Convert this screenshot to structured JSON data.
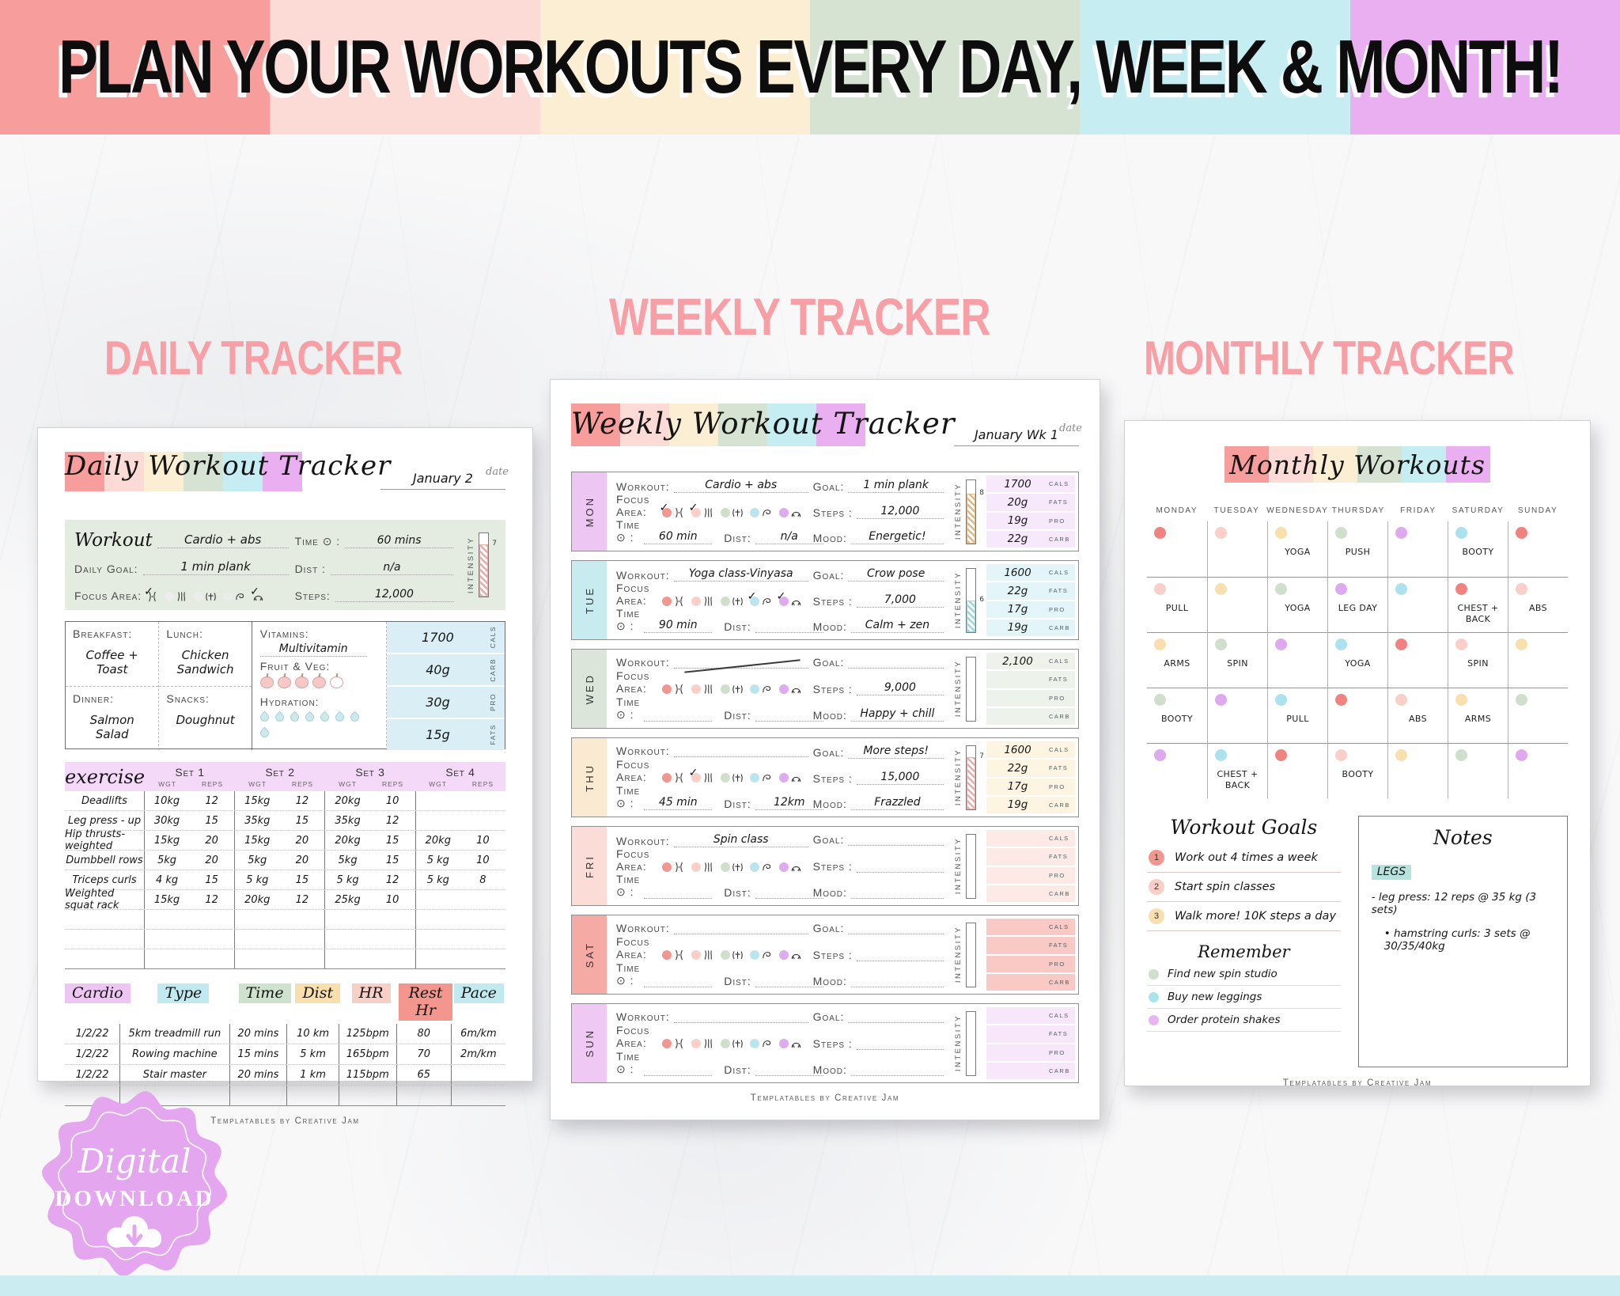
{
  "banner": {
    "headline": "PLAN YOUR WORKOUTS EVERY DAY, WEEK & MONTH!",
    "stripe_colors": [
      "#f79d9b",
      "#fcdad6",
      "#fceed3",
      "#d6e3d3",
      "#c6edf2",
      "#e9aff0"
    ]
  },
  "section_titles": {
    "daily": "DAILY TRACKER",
    "weekly": "WEEKLY TRACKER",
    "monthly": "MONTHLY TRACKER",
    "color": "#f79fa4"
  },
  "badge": {
    "line1": "Digital",
    "line2": "DOWNLOAD",
    "color": "#e3a6ef"
  },
  "footer": "Templatables by Creative Jam",
  "focus_icons": [
    "waist",
    "legs",
    "arms-up",
    "bicep",
    "shoulders"
  ],
  "daily": {
    "title": "Daily Workout Tracker",
    "date_value": "January 2",
    "date_label": "date",
    "panel": {
      "workout_label": "Workout",
      "workout": "Cardio + abs",
      "goal_label": "Daily Goal:",
      "goal": "1 min plank",
      "focus_label": "Focus Area:",
      "focus_checks": [
        true,
        false,
        false,
        false,
        true
      ],
      "unchecked_dot_color": "#ececec",
      "time_label": "Time ⊙ :",
      "time": "60 mins",
      "dist_label": "Dist :",
      "dist": "n/a",
      "steps_label": "Steps:",
      "steps": "12,000",
      "intensity": {
        "label": "INTENSITY",
        "value": "7",
        "fill": 0.82,
        "color": "#e2aeac"
      }
    },
    "meals": {
      "breakfast_label": "Breakfast:",
      "breakfast": "Coffee + Toast",
      "lunch_label": "Lunch:",
      "lunch": "Chicken Sandwich",
      "dinner_label": "Dinner:",
      "dinner": "Salmon Salad",
      "snacks_label": "Snacks:",
      "snacks": "Doughnut",
      "vitamins_label": "Vitamins:",
      "vitamins": "Multivitamin",
      "fruitveg_label": "Fruit & Veg:",
      "fruit_filled": 4,
      "fruit_total": 5,
      "hydration_label": "Hydration:",
      "hydration_total": 8,
      "macros": [
        {
          "value": "1700",
          "label": "CALS"
        },
        {
          "value": "40g",
          "label": "CARB"
        },
        {
          "value": "30g",
          "label": "PRO"
        },
        {
          "value": "15g",
          "label": "FATS"
        }
      ]
    },
    "exercise": {
      "title": "exercise",
      "set_headers": [
        "Set 1",
        "Set 2",
        "Set 3",
        "Set 4"
      ],
      "wgt_label": "WGT",
      "reps_label": "REPS",
      "rows": [
        {
          "name": "Deadlifts",
          "sets": [
            [
              "10kg",
              "12"
            ],
            [
              "15kg",
              "12"
            ],
            [
              "20kg",
              "10"
            ],
            [
              "",
              ""
            ]
          ]
        },
        {
          "name": "Leg press - up",
          "sets": [
            [
              "30kg",
              "15"
            ],
            [
              "35kg",
              "15"
            ],
            [
              "35kg",
              "12"
            ],
            [
              "",
              ""
            ]
          ]
        },
        {
          "name": "Hip thrusts-weighted",
          "sets": [
            [
              "15kg",
              "20"
            ],
            [
              "15kg",
              "20"
            ],
            [
              "20kg",
              "15"
            ],
            [
              "20kg",
              "10"
            ]
          ]
        },
        {
          "name": "Dumbbell rows",
          "sets": [
            [
              "5kg",
              "20"
            ],
            [
              "5kg",
              "20"
            ],
            [
              "5kg",
              "15"
            ],
            [
              "5 kg",
              "10"
            ]
          ]
        },
        {
          "name": "Triceps curls",
          "sets": [
            [
              "4 kg",
              "15"
            ],
            [
              "5 kg",
              "15"
            ],
            [
              "5 kg",
              "12"
            ],
            [
              "5 kg",
              "8"
            ]
          ]
        },
        {
          "name": "Weighted squat rack",
          "sets": [
            [
              "15kg",
              "12"
            ],
            [
              "20kg",
              "12"
            ],
            [
              "25kg",
              "10"
            ],
            [
              "",
              ""
            ]
          ]
        },
        {
          "name": "",
          "sets": [
            [
              "",
              ""
            ],
            [
              "",
              ""
            ],
            [
              "",
              ""
            ],
            [
              "",
              ""
            ]
          ]
        },
        {
          "name": "",
          "sets": [
            [
              "",
              ""
            ],
            [
              "",
              ""
            ],
            [
              "",
              ""
            ],
            [
              "",
              ""
            ]
          ]
        },
        {
          "name": "",
          "sets": [
            [
              "",
              ""
            ],
            [
              "",
              ""
            ],
            [
              "",
              ""
            ],
            [
              "",
              ""
            ]
          ]
        }
      ]
    },
    "cardio": {
      "headers": [
        {
          "label": "Cardio",
          "color": "#eec6f3"
        },
        {
          "label": "Type",
          "color": "#c1e9f0"
        },
        {
          "label": "Time",
          "color": "#cfe2cd"
        },
        {
          "label": "Dist",
          "color": "#f8dfad"
        },
        {
          "label": "HR",
          "color": "#f8cfc7"
        },
        {
          "label": "Rest Hr",
          "color": "#f2968e"
        },
        {
          "label": "Pace",
          "color": "#c1e9f0"
        }
      ],
      "rows": [
        [
          "1/2/22",
          "5km treadmill run",
          "20 mins",
          "10 km",
          "125bpm",
          "80",
          "6m/km"
        ],
        [
          "1/2/22",
          "Rowing machine",
          "15 mins",
          "5 km",
          "165bpm",
          "70",
          "2m/km"
        ],
        [
          "1/2/22",
          "Stair master",
          "20 mins",
          "1 km",
          "115bpm",
          "65",
          ""
        ],
        [
          "",
          "",
          "",
          "",
          "",
          "",
          ""
        ]
      ]
    }
  },
  "weekly": {
    "title": "Weekly Workout Tracker",
    "date_value": "January Wk 1",
    "date_label": "date",
    "labels": {
      "workout": "Workout:",
      "focus": "Focus Area:",
      "time": "Time ⊙ :",
      "dist": "Dist:",
      "goal": "Goal:",
      "steps": "Steps :",
      "mood": "Mood:",
      "intensity": "INTENSITY"
    },
    "focus_dot_colors": [
      "#f2968e",
      "#f9cfc8",
      "#cfdfcc",
      "#bce4ee",
      "#e0aaf0"
    ],
    "macro_labels": [
      "CALS",
      "FATS",
      "PRO",
      "CARB"
    ],
    "days": [
      {
        "day": "MON",
        "label_color": "#eec6f3",
        "tint": "#f8e8fb",
        "workout": "Cardio + abs",
        "strike": false,
        "focus_checks": [
          true,
          true,
          false,
          false,
          false
        ],
        "time": "60 min",
        "dist": "n/a",
        "goal": "1 min plank",
        "steps": "12,000",
        "mood": "Energetic!",
        "intensity": {
          "value": "8",
          "fill": 0.78,
          "color": "#ddb88c"
        },
        "macros": [
          "1700",
          "20g",
          "19g",
          "22g"
        ]
      },
      {
        "day": "TUE",
        "label_color": "#c8ebf0",
        "tint": "#e3f5f8",
        "workout": "Yoga class-Vinyasa",
        "strike": false,
        "focus_checks": [
          false,
          false,
          false,
          true,
          true
        ],
        "time": "90 min",
        "dist": "",
        "goal": "Crow pose",
        "steps": "7,000",
        "mood": "Calm + zen",
        "intensity": {
          "value": "6",
          "fill": 0.5,
          "color": "#9fd4dc"
        },
        "macros": [
          "1600",
          "22g",
          "17g",
          "19g"
        ]
      },
      {
        "day": "WED",
        "label_color": "#dbe5d9",
        "tint": "#edf2ea",
        "workout": "",
        "strike": true,
        "focus_checks": [
          false,
          false,
          false,
          false,
          false
        ],
        "time": "",
        "dist": "",
        "goal": "",
        "steps": "9,000",
        "mood": "Happy + chill",
        "intensity": {
          "value": "",
          "fill": 0,
          "color": "#cccccc"
        },
        "macros": [
          "2,100",
          "",
          "",
          ""
        ]
      },
      {
        "day": "THU",
        "label_color": "#faead2",
        "tint": "#fdf4e1",
        "workout": "",
        "strike": false,
        "focus_checks": [
          false,
          true,
          false,
          false,
          false
        ],
        "time": "45 min",
        "dist": "12km",
        "goal": "More steps!",
        "steps": "15,000",
        "mood": "Frazzled",
        "intensity": {
          "value": "7",
          "fill": 0.82,
          "color": "#e0b0ae"
        },
        "macros": [
          "1600",
          "22g",
          "17g",
          "19g"
        ]
      },
      {
        "day": "FRI",
        "label_color": "#fbdcd7",
        "tint": "#fdeae6",
        "workout": "Spin class",
        "strike": false,
        "focus_checks": [
          false,
          false,
          false,
          false,
          false
        ],
        "time": "",
        "dist": "",
        "goal": "",
        "steps": "",
        "mood": "",
        "intensity": {
          "value": "",
          "fill": 0,
          "color": "#cccccc"
        },
        "macros": [
          "",
          "",
          "",
          ""
        ]
      },
      {
        "day": "SAT",
        "label_color": "#f6aaa5",
        "tint": "#f9c9c5",
        "workout": "",
        "strike": false,
        "focus_checks": [
          false,
          false,
          false,
          false,
          false
        ],
        "time": "",
        "dist": "",
        "goal": "",
        "steps": "",
        "mood": "",
        "intensity": {
          "value": "",
          "fill": 0,
          "color": "#cccccc"
        },
        "macros": [
          "",
          "",
          "",
          ""
        ]
      },
      {
        "day": "SUN",
        "label_color": "#efc9f4",
        "tint": "#f8e6fb",
        "workout": "",
        "strike": false,
        "focus_checks": [
          false,
          false,
          false,
          false,
          false
        ],
        "time": "",
        "dist": "",
        "goal": "",
        "steps": "",
        "mood": "",
        "intensity": {
          "value": "",
          "fill": 0,
          "color": "#cccccc"
        },
        "macros": [
          "",
          "",
          "",
          ""
        ]
      }
    ]
  },
  "monthly": {
    "title": "Monthly Workouts",
    "weekdays": [
      "MONDAY",
      "TUESDAY",
      "WEDNESDAY",
      "THURSDAY",
      "FRIDAY",
      "SATURDAY",
      "SUNDAY"
    ],
    "dot_colors": {
      "red": "#f0837f",
      "pink": "#f9cfc8",
      "orange": "#f8dfad",
      "green": "#cfdfcc",
      "purple": "#dfa9ef",
      "cyan": "#abe2ee"
    },
    "grid": [
      [
        {
          "dot": "red",
          "label": ""
        },
        {
          "dot": "pink",
          "label": ""
        },
        {
          "dot": "orange",
          "label": "YOGA"
        },
        {
          "dot": "green",
          "label": "PUSH"
        },
        {
          "dot": "purple",
          "label": ""
        },
        {
          "dot": "cyan",
          "label": "BOOTY"
        },
        {
          "dot": "red",
          "label": ""
        }
      ],
      [
        {
          "dot": "pink",
          "label": "PULL"
        },
        {
          "dot": "orange",
          "label": ""
        },
        {
          "dot": "green",
          "label": "YOGA"
        },
        {
          "dot": "purple",
          "label": "LEG DAY"
        },
        {
          "dot": "cyan",
          "label": ""
        },
        {
          "dot": "red",
          "label": "CHEST + BACK"
        },
        {
          "dot": "pink",
          "label": "ABS"
        }
      ],
      [
        {
          "dot": "orange",
          "label": "ARMS"
        },
        {
          "dot": "green",
          "label": "SPIN"
        },
        {
          "dot": "purple",
          "label": ""
        },
        {
          "dot": "cyan",
          "label": "YOGA"
        },
        {
          "dot": "red",
          "label": ""
        },
        {
          "dot": "pink",
          "label": "SPIN"
        },
        {
          "dot": "orange",
          "label": ""
        }
      ],
      [
        {
          "dot": "green",
          "label": "BOOTY"
        },
        {
          "dot": "purple",
          "label": ""
        },
        {
          "dot": "cyan",
          "label": "PULL"
        },
        {
          "dot": "red",
          "label": ""
        },
        {
          "dot": "pink",
          "label": "ABS"
        },
        {
          "dot": "orange",
          "label": "ARMS"
        },
        {
          "dot": "green",
          "label": ""
        }
      ],
      [
        {
          "dot": "purple",
          "label": ""
        },
        {
          "dot": "cyan",
          "label": "CHEST + BACK"
        },
        {
          "dot": "red",
          "label": ""
        },
        {
          "dot": "pink",
          "label": "BOOTY"
        },
        {
          "dot": "orange",
          "label": ""
        },
        {
          "dot": "green",
          "label": ""
        },
        {
          "dot": "purple",
          "label": ""
        }
      ]
    ],
    "goals": {
      "title": "Workout Goals",
      "items": [
        {
          "num": "1",
          "color": "#f2968e",
          "text": "Work out 4 times a week"
        },
        {
          "num": "2",
          "color": "#f8cfc7",
          "text": "Start spin classes"
        },
        {
          "num": "3",
          "color": "#f8dfad",
          "text": "Walk more! 10K steps a day"
        }
      ]
    },
    "remember": {
      "title": "Remember",
      "items": [
        {
          "color": "#cfdfcc",
          "text": "Find new spin studio"
        },
        {
          "color": "#abe2ee",
          "text": "Buy new leggings"
        },
        {
          "color": "#e7b6f2",
          "text": "Order protein shakes"
        }
      ]
    },
    "notes": {
      "title": "Notes",
      "highlight": "LEGS",
      "highlight_color": "#b8e2de",
      "lines": [
        "- leg press: 12 reps @ 35 kg (3 sets)",
        "•  hamstring curls: 3 sets @ 30/35/40kg"
      ]
    }
  }
}
